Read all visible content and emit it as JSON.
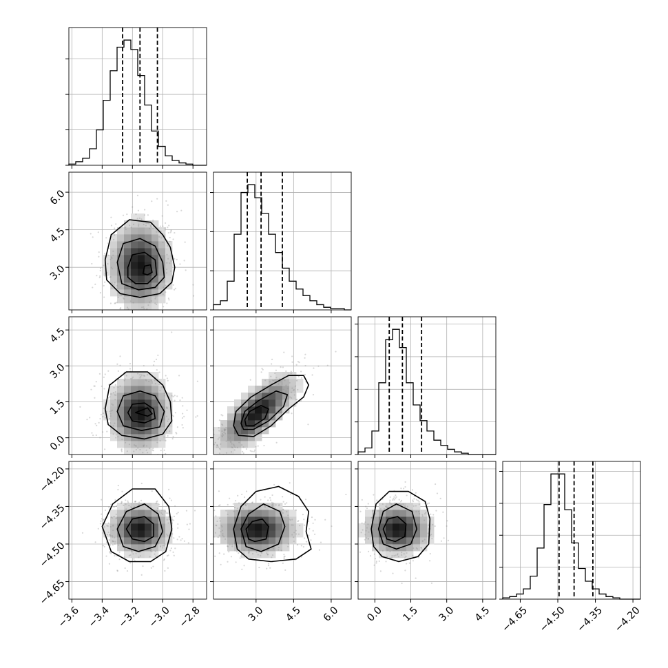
{
  "chart_data": {
    "type": "corner",
    "grid": true,
    "parameters": [
      {
        "range": [
          -3.62,
          -2.71
        ],
        "ticks": [
          -3.6,
          -3.4,
          -3.2,
          -3.0,
          -2.8
        ],
        "tick_labels": [
          "−3.6",
          "−3.4",
          "−3.2",
          "−3.0",
          "−2.8"
        ],
        "quantiles": [
          -3.265,
          -3.15,
          -3.035
        ],
        "hist": {
          "edges_start": -3.62,
          "bin_width": 0.0455,
          "counts": [
            1,
            3,
            6,
            14,
            30,
            55,
            80,
            100,
            106,
            98,
            76,
            51,
            29,
            16,
            8,
            4,
            2,
            1,
            0,
            0
          ],
          "y_ticks": [
            0,
            30,
            60,
            90
          ]
        }
      },
      {
        "range": [
          1.3,
          6.8
        ],
        "ticks": [
          3.0,
          4.5,
          6.0
        ],
        "tick_labels": [
          "3.0",
          "4.5",
          "6.0"
        ],
        "quantiles": [
          2.65,
          3.2,
          4.05
        ],
        "hist": {
          "edges_start": 1.3,
          "bin_width": 0.275,
          "counts": [
            4,
            7,
            22,
            58,
            90,
            96,
            86,
            74,
            58,
            44,
            32,
            22,
            16,
            11,
            7,
            4,
            2,
            1,
            1,
            0
          ],
          "y_ticks": [
            0,
            30,
            60,
            90
          ]
        }
      },
      {
        "range": [
          -0.7,
          5.05
        ],
        "ticks": [
          0.0,
          1.5,
          3.0,
          4.5
        ],
        "tick_labels": [
          "0.0",
          "1.5",
          "3.0",
          "4.5"
        ],
        "quantiles": [
          0.6,
          1.15,
          1.95
        ],
        "hist": {
          "edges_start": -0.7,
          "bin_width": 0.2875,
          "counts": [
            2,
            5,
            18,
            55,
            88,
            96,
            82,
            55,
            38,
            26,
            18,
            11,
            7,
            4,
            2,
            1,
            0,
            0,
            0,
            0
          ],
          "y_ticks": [
            0,
            25,
            50,
            75,
            100
          ]
        }
      },
      {
        "range": [
          -4.72,
          -4.17
        ],
        "ticks": [
          -4.65,
          -4.5,
          -4.35,
          -4.2
        ],
        "tick_labels": [
          "−4.65",
          "−4.50",
          "−4.35",
          "−4.20"
        ],
        "quantiles": [
          -4.495,
          -4.435,
          -4.36
        ],
        "hist": {
          "edges_start": -4.72,
          "bin_width": 0.0275,
          "counts": [
            1,
            2,
            4,
            8,
            18,
            40,
            74,
            98,
            98,
            70,
            44,
            24,
            14,
            8,
            4,
            2,
            1,
            0,
            0,
            0
          ],
          "y_ticks": [
            0,
            25,
            50,
            75,
            100
          ]
        }
      }
    ],
    "pairs": [
      {
        "row": 1,
        "col": 0,
        "center": [
          -3.15,
          3.1
        ],
        "sigma": [
          0.11,
          0.95
        ],
        "rho": 0.0,
        "contours": [
          [
            [
              -3.38,
              3.3
            ],
            [
              -3.34,
              4.3
            ],
            [
              -3.22,
              4.9
            ],
            [
              -3.08,
              4.8
            ],
            [
              -3.0,
              4.3
            ],
            [
              -2.95,
              3.8
            ],
            [
              -2.92,
              3.0
            ],
            [
              -2.94,
              2.4
            ],
            [
              -3.02,
              1.95
            ],
            [
              -3.15,
              1.8
            ],
            [
              -3.28,
              1.95
            ],
            [
              -3.37,
              2.5
            ]
          ],
          [
            [
              -3.3,
              3.2
            ],
            [
              -3.26,
              3.95
            ],
            [
              -3.15,
              4.15
            ],
            [
              -3.05,
              3.85
            ],
            [
              -3.0,
              3.2
            ],
            [
              -2.99,
              2.6
            ],
            [
              -3.05,
              2.2
            ],
            [
              -3.16,
              2.1
            ],
            [
              -3.27,
              2.35
            ]
          ],
          [
            [
              -3.23,
              3.0
            ],
            [
              -3.2,
              3.5
            ],
            [
              -3.12,
              3.6
            ],
            [
              -3.05,
              3.3
            ],
            [
              -3.04,
              2.7
            ],
            [
              -3.1,
              2.35
            ],
            [
              -3.18,
              2.35
            ],
            [
              -3.23,
              2.6
            ]
          ],
          [
            [
              -3.13,
              2.75
            ],
            [
              -3.12,
              3.05
            ],
            [
              -3.08,
              3.1
            ],
            [
              -3.07,
              2.8
            ],
            [
              -3.1,
              2.7
            ]
          ]
        ]
      },
      {
        "row": 2,
        "col": 0,
        "center": [
          -3.15,
          1.05
        ],
        "sigma": [
          0.11,
          0.85
        ],
        "rho": 0.0,
        "contours": [
          [
            [
              -3.38,
              1.2
            ],
            [
              -3.35,
              2.2
            ],
            [
              -3.24,
              2.75
            ],
            [
              -3.1,
              2.75
            ],
            [
              -3.0,
              2.2
            ],
            [
              -2.95,
              1.5
            ],
            [
              -2.94,
              0.7
            ],
            [
              -3.0,
              0.15
            ],
            [
              -3.12,
              -0.05
            ],
            [
              -3.27,
              0.1
            ],
            [
              -3.36,
              0.55
            ]
          ],
          [
            [
              -3.3,
              1.1
            ],
            [
              -3.26,
              1.75
            ],
            [
              -3.15,
              1.95
            ],
            [
              -3.05,
              1.75
            ],
            [
              -2.99,
              1.1
            ],
            [
              -3.02,
              0.45
            ],
            [
              -3.14,
              0.3
            ],
            [
              -3.26,
              0.5
            ]
          ],
          [
            [
              -3.23,
              1.05
            ],
            [
              -3.2,
              1.4
            ],
            [
              -3.12,
              1.45
            ],
            [
              -3.06,
              1.2
            ],
            [
              -3.05,
              0.8
            ],
            [
              -3.12,
              0.62
            ],
            [
              -3.2,
              0.7
            ]
          ],
          [
            [
              -3.18,
              1.05
            ],
            [
              -3.1,
              1.25
            ],
            [
              -3.07,
              1.0
            ],
            [
              -3.1,
              0.9
            ]
          ]
        ]
      },
      {
        "row": 2,
        "col": 1,
        "center": [
          3.05,
          1.05
        ],
        "sigma": [
          0.85,
          0.85
        ],
        "rho": 0.72,
        "contours": [
          [
            [
              2.1,
              0.5
            ],
            [
              2.2,
              1.1
            ],
            [
              2.8,
              1.7
            ],
            [
              3.6,
              2.2
            ],
            [
              4.3,
              2.6
            ],
            [
              4.9,
              2.6
            ],
            [
              5.1,
              2.2
            ],
            [
              4.9,
              1.7
            ],
            [
              4.3,
              1.2
            ],
            [
              3.6,
              0.5
            ],
            [
              2.9,
              0.05
            ],
            [
              2.3,
              0.1
            ]
          ],
          [
            [
              2.4,
              0.6
            ],
            [
              2.55,
              1.1
            ],
            [
              3.1,
              1.55
            ],
            [
              3.8,
              1.95
            ],
            [
              4.25,
              1.8
            ],
            [
              4.1,
              1.3
            ],
            [
              3.5,
              0.7
            ],
            [
              2.9,
              0.35
            ],
            [
              2.5,
              0.35
            ]
          ],
          [
            [
              2.55,
              0.75
            ],
            [
              2.75,
              1.1
            ],
            [
              3.2,
              1.35
            ],
            [
              3.5,
              1.2
            ],
            [
              3.35,
              0.8
            ],
            [
              2.9,
              0.5
            ],
            [
              2.6,
              0.5
            ]
          ]
        ]
      },
      {
        "row": 3,
        "col": 0,
        "center": [
          -3.15,
          -4.44
        ],
        "sigma": [
          0.11,
          0.055
        ],
        "rho": 0.0,
        "contours": [
          [
            [
              -3.4,
              -4.43
            ],
            [
              -3.33,
              -4.34
            ],
            [
              -3.2,
              -4.28
            ],
            [
              -3.05,
              -4.28
            ],
            [
              -2.96,
              -4.35
            ],
            [
              -2.94,
              -4.44
            ],
            [
              -2.98,
              -4.53
            ],
            [
              -3.08,
              -4.57
            ],
            [
              -3.22,
              -4.57
            ],
            [
              -3.34,
              -4.53
            ]
          ],
          [
            [
              -3.3,
              -4.44
            ],
            [
              -3.24,
              -4.37
            ],
            [
              -3.12,
              -4.34
            ],
            [
              -3.03,
              -4.38
            ],
            [
              -3.0,
              -4.45
            ],
            [
              -3.05,
              -4.51
            ],
            [
              -3.16,
              -4.53
            ],
            [
              -3.26,
              -4.51
            ]
          ],
          [
            [
              -3.24,
              -4.44
            ],
            [
              -3.2,
              -4.4
            ],
            [
              -3.12,
              -4.39
            ],
            [
              -3.06,
              -4.42
            ],
            [
              -3.06,
              -4.47
            ],
            [
              -3.12,
              -4.49
            ],
            [
              -3.2,
              -4.48
            ]
          ]
        ]
      },
      {
        "row": 3,
        "col": 1,
        "center": [
          3.05,
          -4.44
        ],
        "sigma": [
          0.85,
          0.055
        ],
        "rho": 0.0,
        "contours": [
          [
            [
              2.1,
              -4.44
            ],
            [
              2.4,
              -4.35
            ],
            [
              3.0,
              -4.29
            ],
            [
              3.9,
              -4.27
            ],
            [
              4.7,
              -4.31
            ],
            [
              5.1,
              -4.37
            ],
            [
              5.0,
              -4.45
            ],
            [
              5.2,
              -4.52
            ],
            [
              4.6,
              -4.56
            ],
            [
              3.6,
              -4.57
            ],
            [
              2.7,
              -4.56
            ],
            [
              2.25,
              -4.52
            ]
          ],
          [
            [
              2.4,
              -4.44
            ],
            [
              2.7,
              -4.38
            ],
            [
              3.3,
              -4.34
            ],
            [
              3.95,
              -4.37
            ],
            [
              4.15,
              -4.43
            ],
            [
              3.9,
              -4.5
            ],
            [
              3.2,
              -4.53
            ],
            [
              2.6,
              -4.51
            ]
          ],
          [
            [
              2.6,
              -4.44
            ],
            [
              2.85,
              -4.41
            ],
            [
              3.25,
              -4.4
            ],
            [
              3.5,
              -4.43
            ],
            [
              3.4,
              -4.48
            ],
            [
              2.95,
              -4.49
            ],
            [
              2.7,
              -4.48
            ]
          ]
        ]
      },
      {
        "row": 3,
        "col": 2,
        "center": [
          0.95,
          -4.44
        ],
        "sigma": [
          0.75,
          0.055
        ],
        "rho": 0.0,
        "contours": [
          [
            [
              -0.15,
              -4.44
            ],
            [
              0.05,
              -4.34
            ],
            [
              0.6,
              -4.29
            ],
            [
              1.4,
              -4.29
            ],
            [
              2.1,
              -4.33
            ],
            [
              2.3,
              -4.4
            ],
            [
              2.25,
              -4.5
            ],
            [
              1.8,
              -4.55
            ],
            [
              1.0,
              -4.57
            ],
            [
              0.3,
              -4.55
            ],
            [
              -0.05,
              -4.51
            ]
          ],
          [
            [
              0.15,
              -4.44
            ],
            [
              0.35,
              -4.37
            ],
            [
              0.9,
              -4.34
            ],
            [
              1.55,
              -4.37
            ],
            [
              1.75,
              -4.44
            ],
            [
              1.5,
              -4.5
            ],
            [
              0.9,
              -4.52
            ],
            [
              0.35,
              -4.5
            ]
          ],
          [
            [
              0.35,
              -4.44
            ],
            [
              0.55,
              -4.4
            ],
            [
              0.95,
              -4.39
            ],
            [
              1.3,
              -4.42
            ],
            [
              1.25,
              -4.47
            ],
            [
              0.85,
              -4.49
            ],
            [
              0.5,
              -4.48
            ]
          ]
        ]
      }
    ]
  }
}
